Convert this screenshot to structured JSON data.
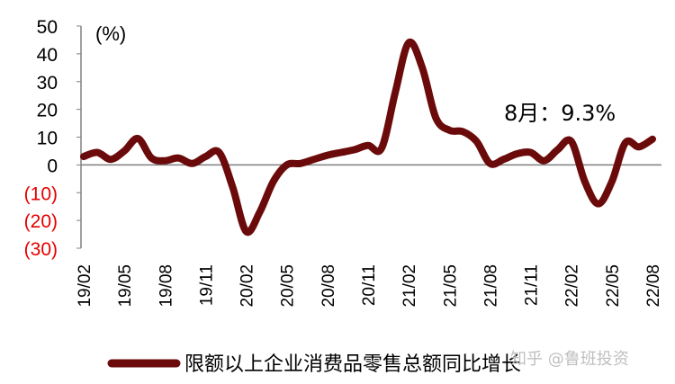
{
  "chart_data": {
    "type": "line",
    "unit_label": "(%)",
    "ylim": [
      -30,
      50
    ],
    "y_ticks": [
      {
        "value": 50,
        "label": "50",
        "negative": false
      },
      {
        "value": 40,
        "label": "40",
        "negative": false
      },
      {
        "value": 30,
        "label": "30",
        "negative": false
      },
      {
        "value": 20,
        "label": "20",
        "negative": false
      },
      {
        "value": 10,
        "label": "10",
        "negative": false
      },
      {
        "value": 0,
        "label": "0",
        "negative": false
      },
      {
        "value": -10,
        "label": "(10)",
        "negative": true
      },
      {
        "value": -20,
        "label": "(20)",
        "negative": true
      },
      {
        "value": -30,
        "label": "(30)",
        "negative": true
      }
    ],
    "x_tick_labels": [
      "19/02",
      "19/05",
      "19/08",
      "19/11",
      "20/02",
      "20/05",
      "20/08",
      "20/11",
      "21/02",
      "21/05",
      "21/08",
      "21/11",
      "22/02",
      "22/05",
      "22/08"
    ],
    "categories": [
      "19/02",
      "19/03",
      "19/04",
      "19/05",
      "19/06",
      "19/07",
      "19/08",
      "19/09",
      "19/10",
      "19/11",
      "19/12",
      "20/01",
      "20/02",
      "20/03",
      "20/04",
      "20/05",
      "20/06",
      "20/07",
      "20/08",
      "20/09",
      "20/10",
      "20/11",
      "20/12",
      "21/01",
      "21/02",
      "21/03",
      "21/04",
      "21/05",
      "21/06",
      "21/07",
      "21/08",
      "21/09",
      "21/10",
      "21/11",
      "21/12",
      "22/01",
      "22/02",
      "22/03",
      "22/04",
      "22/05",
      "22/06",
      "22/07",
      "22/08"
    ],
    "series": [
      {
        "name": "限额以上企业消费品零售总额同比增长",
        "color": "#6b0a0a",
        "values": [
          3.0,
          4.5,
          2.0,
          5.0,
          9.5,
          2.5,
          1.5,
          2.5,
          0.5,
          3.0,
          4.5,
          -8.0,
          -24.0,
          -17.0,
          -6.0,
          0.0,
          0.5,
          2.0,
          3.5,
          4.5,
          5.5,
          7.0,
          6.0,
          26.0,
          44.0,
          35.0,
          17.0,
          12.5,
          12.0,
          8.5,
          0.5,
          2.0,
          4.0,
          4.5,
          1.5,
          5.5,
          8.5,
          -6.0,
          -14.0,
          -6.0,
          8.0,
          6.5,
          9.3
        ]
      }
    ],
    "annotation": "8月：9.3%",
    "legend": {
      "placement": "bottom",
      "label": "限额以上企业消费品零售总额同比增长"
    },
    "grid": false,
    "colors": {
      "line": "#6b0a0a",
      "positive_tick": "#000000",
      "negative_tick": "#e60000",
      "axis": "#808080"
    }
  },
  "watermark": "知乎 @鲁班投资"
}
